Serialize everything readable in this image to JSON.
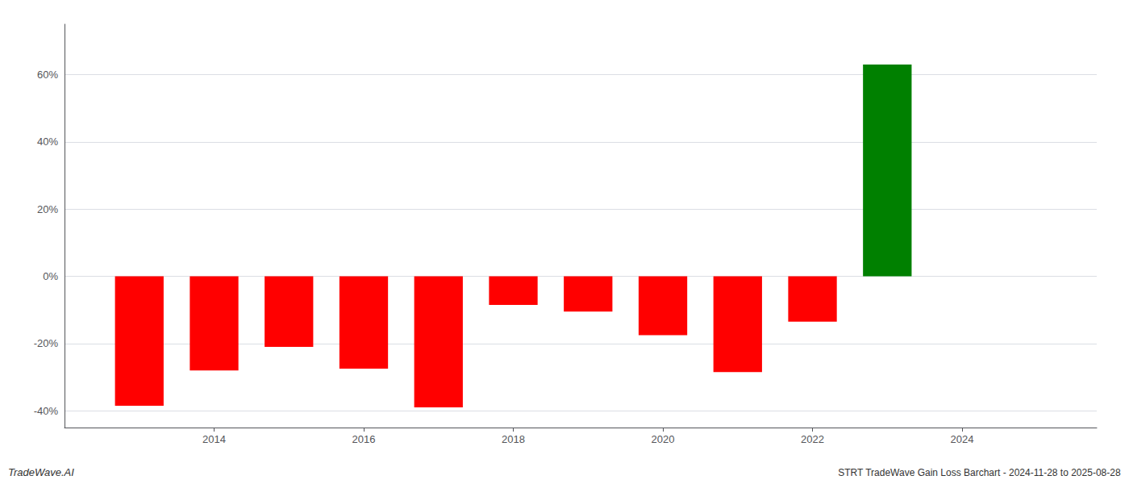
{
  "chart_data": {
    "type": "bar",
    "x": [
      2013,
      2014,
      2015,
      2016,
      2017,
      2018,
      2019,
      2020,
      2021,
      2022,
      2023
    ],
    "values": [
      -38.5,
      -28.0,
      -21.0,
      -27.5,
      -39.0,
      -8.5,
      -10.5,
      -17.5,
      -28.5,
      -13.5,
      63.0
    ],
    "colors": [
      "#ff0000",
      "#ff0000",
      "#ff0000",
      "#ff0000",
      "#ff0000",
      "#ff0000",
      "#ff0000",
      "#ff0000",
      "#ff0000",
      "#ff0000",
      "#008000"
    ],
    "xlim": [
      2012.0,
      2025.8
    ],
    "xticks": [
      2014,
      2016,
      2018,
      2020,
      2022,
      2024
    ],
    "ylim": [
      -45,
      75
    ],
    "yticks": [
      {
        "value": -40,
        "label": "-40%"
      },
      {
        "value": -20,
        "label": "-20%"
      },
      {
        "value": 0,
        "label": "0%"
      },
      {
        "value": 20,
        "label": "20%"
      },
      {
        "value": 40,
        "label": "40%"
      },
      {
        "value": 60,
        "label": "60%"
      }
    ],
    "grid": true,
    "annotations": [
      "TradeWave.AI",
      "STRT TradeWave Gain Loss Barchart - 2024-11-28 to 2025-08-28"
    ]
  }
}
